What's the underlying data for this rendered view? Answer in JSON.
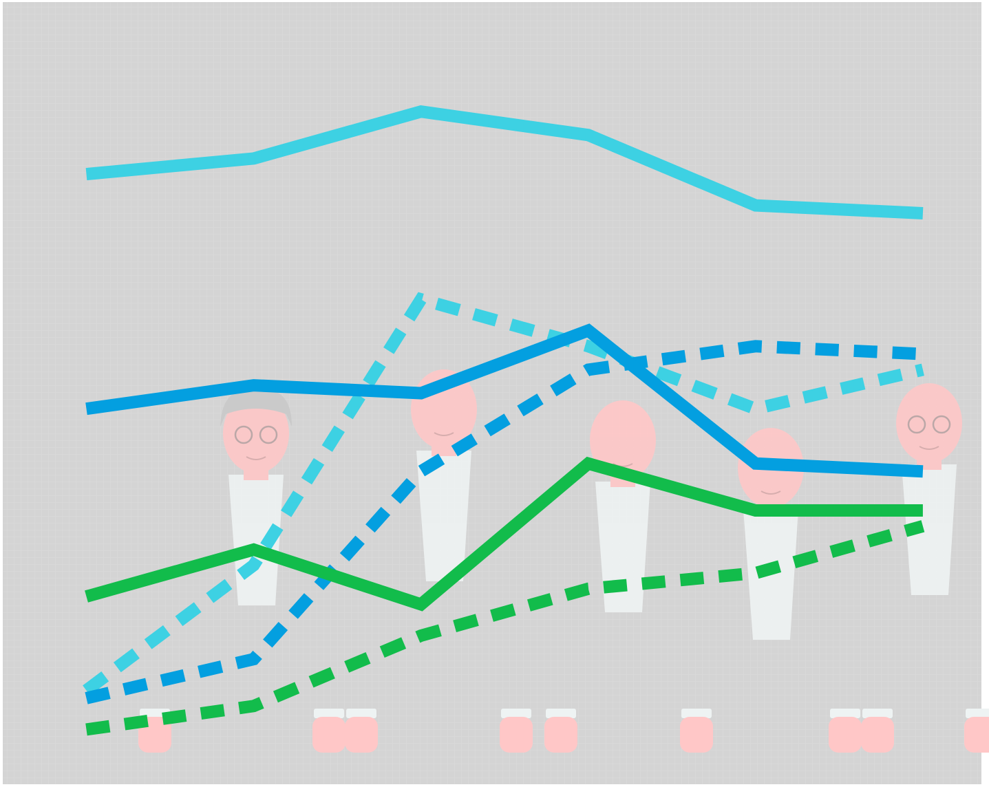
{
  "colors": {
    "background": "#d4d4d4",
    "grid": "#dcdcdc",
    "cyan": "#3dd1e3",
    "blue": "#039fe0",
    "green": "#12bc4b",
    "figure_skin": "#ffc7c7",
    "figure_shirt": "#eef3f3",
    "figure_hair": "#c9c9c9"
  },
  "chart_data": {
    "type": "line",
    "title": "",
    "xlabel": "",
    "ylabel": "",
    "x": [
      1,
      2,
      3,
      4,
      5,
      6
    ],
    "xlim": [
      0.5,
      6.35
    ],
    "ylim": [
      0,
      100
    ],
    "grid": true,
    "legend": "none",
    "series": [
      {
        "color": "cyan",
        "style": "solid",
        "values": [
          78,
          80,
          86,
          83,
          74,
          73
        ]
      },
      {
        "color": "blue",
        "style": "solid",
        "values": [
          48,
          51,
          50,
          58,
          41,
          40
        ]
      },
      {
        "color": "green",
        "style": "solid",
        "values": [
          24,
          30,
          23,
          41,
          35,
          35
        ]
      },
      {
        "color": "cyan",
        "style": "dashed",
        "values": [
          12,
          28,
          62,
          56,
          48,
          53
        ]
      },
      {
        "color": "blue",
        "style": "dashed",
        "values": [
          11,
          16,
          40,
          53,
          56,
          55
        ]
      },
      {
        "color": "green",
        "style": "dashed",
        "values": [
          7,
          10,
          19,
          25,
          27,
          33
        ]
      }
    ]
  },
  "figures": [
    {
      "name": "person-1",
      "glasses": true,
      "hair": "gray"
    },
    {
      "name": "person-2",
      "glasses": false,
      "hair": "thin"
    },
    {
      "name": "person-3",
      "glasses": false,
      "hair": "short"
    },
    {
      "name": "person-4",
      "glasses": false,
      "hair": "none"
    },
    {
      "name": "person-5",
      "glasses": true,
      "hair": "none"
    }
  ]
}
